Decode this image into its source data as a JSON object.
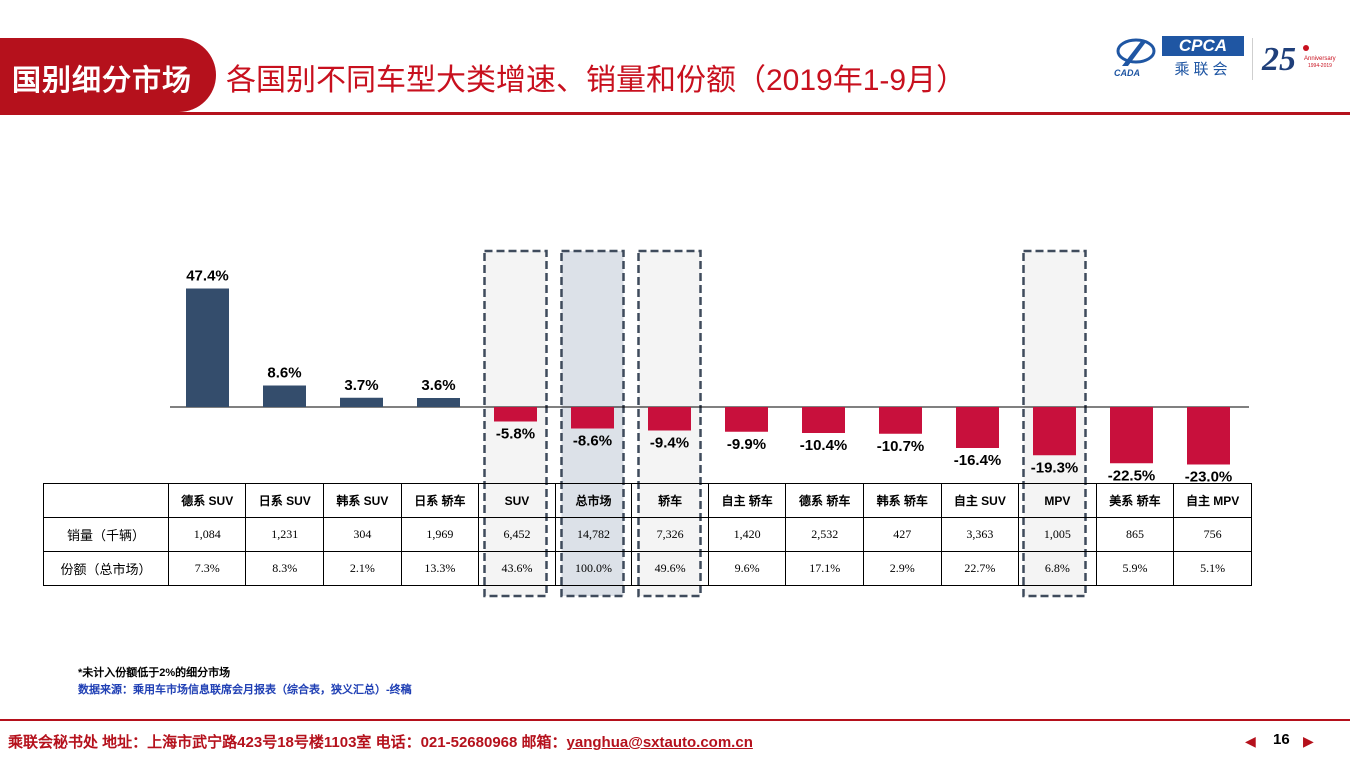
{
  "header": {
    "section_tag": "国别细分市场",
    "title": "各国别不同车型大类增速、销量和份额（2019年1-9月）"
  },
  "logos": {
    "cada": "CADA",
    "cpca": "CPCA",
    "cpca_sub": "乘联会",
    "anniversary": "25 Anniversary 1994-2019"
  },
  "colors": {
    "positive": "#344d6c",
    "negative": "#c8103c",
    "highlight_fill": "#f2f2f2",
    "highlight_total_fill": "#d6dce4",
    "brand_red": "#b5111c"
  },
  "chart_data": {
    "type": "bar",
    "categories": [
      "德系 SUV",
      "日系 SUV",
      "韩系 SUV",
      "日系 轿车",
      "SUV",
      "总市场",
      "轿车",
      "自主 轿车",
      "德系 轿车",
      "韩系 轿车",
      "自主 SUV",
      "MPV",
      "美系 轿车",
      "自主 MPV"
    ],
    "values": [
      47.4,
      8.6,
      3.7,
      3.6,
      -5.8,
      -8.6,
      -9.4,
      -9.9,
      -10.4,
      -10.7,
      -16.4,
      -19.3,
      -22.5,
      -23.0
    ],
    "value_labels": [
      "47.4%",
      "8.6%",
      "3.7%",
      "3.6%",
      "-5.8%",
      "-8.6%",
      "-9.4%",
      "-9.9%",
      "-10.4%",
      "-10.7%",
      "-16.4%",
      "-19.3%",
      "-22.5%",
      "-23.0%"
    ],
    "highlighted": [
      "SUV",
      "总市场",
      "轿车",
      "MPV"
    ],
    "ylim": [
      -25,
      50
    ],
    "grid": false,
    "legend": "none"
  },
  "table": {
    "header": [
      "",
      "德系 SUV",
      "日系 SUV",
      "韩系 SUV",
      "日系 轿车",
      "SUV",
      "总市场",
      "轿车",
      "自主 轿车",
      "德系 轿车",
      "韩系 轿车",
      "自主 SUV",
      "MPV",
      "美系 轿车",
      "自主 MPV"
    ],
    "rows": [
      [
        "销量（千辆）",
        "1,084",
        "1,231",
        "304",
        "1,969",
        "6,452",
        "14,782",
        "7,326",
        "1,420",
        "2,532",
        "427",
        "3,363",
        "1,005",
        "865",
        "756"
      ],
      [
        "份额（总市场）",
        "7.3%",
        "8.3%",
        "2.1%",
        "13.3%",
        "43.6%",
        "100.0%",
        "49.6%",
        "9.6%",
        "17.1%",
        "2.9%",
        "22.7%",
        "6.8%",
        "5.9%",
        "5.1%"
      ]
    ]
  },
  "notes": {
    "footnote": "*未计入份额低于2%的细分市场",
    "source": "数据来源：乘用车市场信息联席会月报表（综合表，狭义汇总）-终稿"
  },
  "footer": {
    "info": "乘联会秘书处   地址：上海市武宁路423号18号楼1103室  电话：021-52680968   邮箱：",
    "email": "yanghua@sxtauto.com.cn",
    "page": "16",
    "prev": "◀",
    "next": "▶"
  }
}
